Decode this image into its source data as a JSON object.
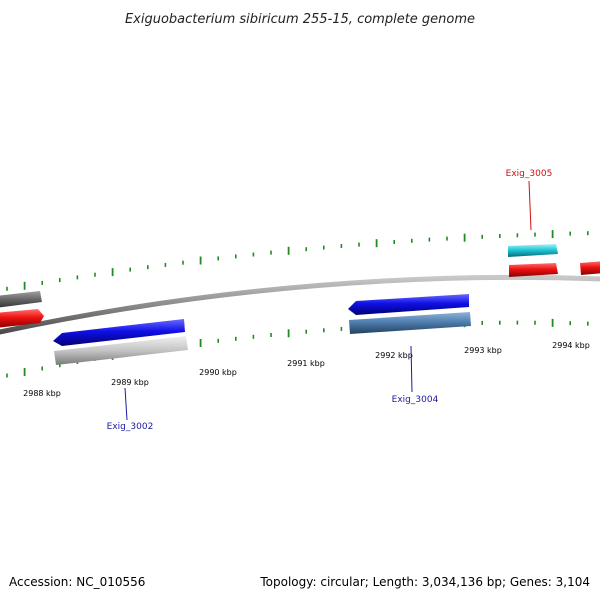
{
  "title": "Exiguobacterium sibiricum 255-15, complete genome",
  "footer": {
    "accession": "Accession: NC_010556",
    "summary": "Topology: circular; Length: 3,034,136 bp; Genes: 3,104"
  },
  "ticks": [
    {
      "kbp": 2988,
      "label": "2988 kbp"
    },
    {
      "kbp": 2989,
      "label": "2989 kbp"
    },
    {
      "kbp": 2990,
      "label": "2990 kbp"
    },
    {
      "kbp": 2991,
      "label": "2991 kbp"
    },
    {
      "kbp": 2992,
      "label": "2992 kbp"
    },
    {
      "kbp": 2993,
      "label": "2993 kbp"
    },
    {
      "kbp": 2994,
      "label": "2994 kbp"
    }
  ],
  "gene_labels": [
    {
      "id": "exig-3002",
      "text": "Exig_3002",
      "color": "#1a1aa0"
    },
    {
      "id": "exig-3004",
      "text": "Exig_3004",
      "color": "#1a1aa0"
    },
    {
      "id": "exig-3005",
      "text": "Exig_3005",
      "color": "#cc1111"
    }
  ],
  "colors": {
    "backbone": "#888888",
    "tick": "#228b22",
    "cds_blue": "#1010e8",
    "cds_steel": "#4f7fb0",
    "cds_red": "#ee1111",
    "cds_cyan": "#20c8d8",
    "cds_gray": "#c0c0c0",
    "cds_darkgray": "#6a6a6a"
  }
}
